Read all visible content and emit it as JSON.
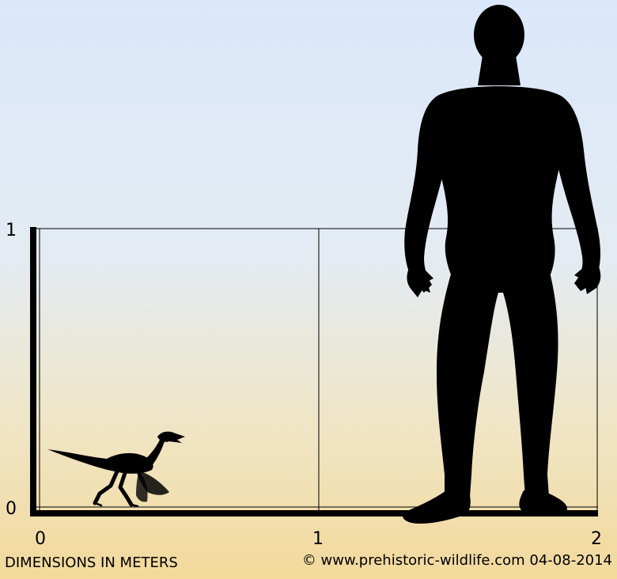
{
  "diagram": {
    "type": "size comparison chart",
    "unit_caption": "DIMENSIONS IN METERS",
    "credit": "© www.prehistoric-wildlife.com 04-08-2014",
    "x_ticks": [
      "0",
      "1",
      "2"
    ],
    "y_ticks": [
      "0",
      "1"
    ],
    "colors": {
      "sky_top": "#dbe8fb",
      "sky_mid": "#e6ecec",
      "sky_bottom": "#f3dba3",
      "silhouette": "#000000",
      "grid": "#000000"
    },
    "figures": [
      {
        "name": "dinosaur-silhouette",
        "icon": "small-theropod-silhouette"
      },
      {
        "name": "human-silhouette",
        "icon": "standing-human-silhouette"
      }
    ]
  }
}
